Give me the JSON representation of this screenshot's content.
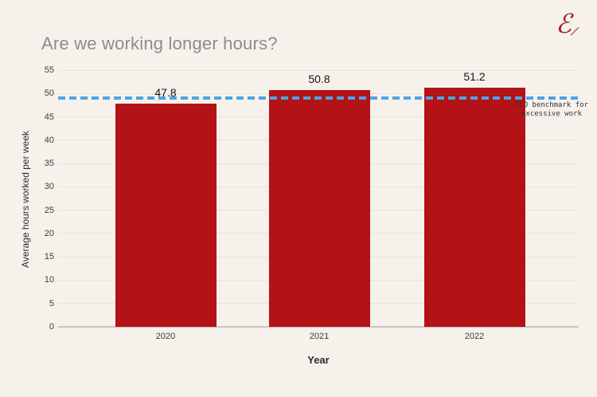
{
  "page": {
    "background": "#f6f1eb"
  },
  "logo": {
    "glyph": "ℰ",
    "slashes": "⁄⁄",
    "color": "#9b1c22"
  },
  "chart_data": {
    "type": "bar",
    "title": "Are we working longer hours?",
    "categories": [
      "2020",
      "2021",
      "2022"
    ],
    "values": [
      47.8,
      50.8,
      51.2
    ],
    "data_labels": [
      "47.8",
      "50.8",
      "51.2"
    ],
    "xlabel": "Year",
    "ylabel": "Average hours worked per week",
    "ylim": [
      0,
      55
    ],
    "ytick_step": 5,
    "grid": true,
    "legend": "none",
    "bar_color": "#b31217",
    "background_color": "#f6f1eb",
    "title_color": "#8c8c8c",
    "benchmark": {
      "value": 49,
      "style": "dashed",
      "color": "#4da4e6",
      "label_line1": "ILO benchmark for",
      "label_line2": "excessive work"
    }
  }
}
